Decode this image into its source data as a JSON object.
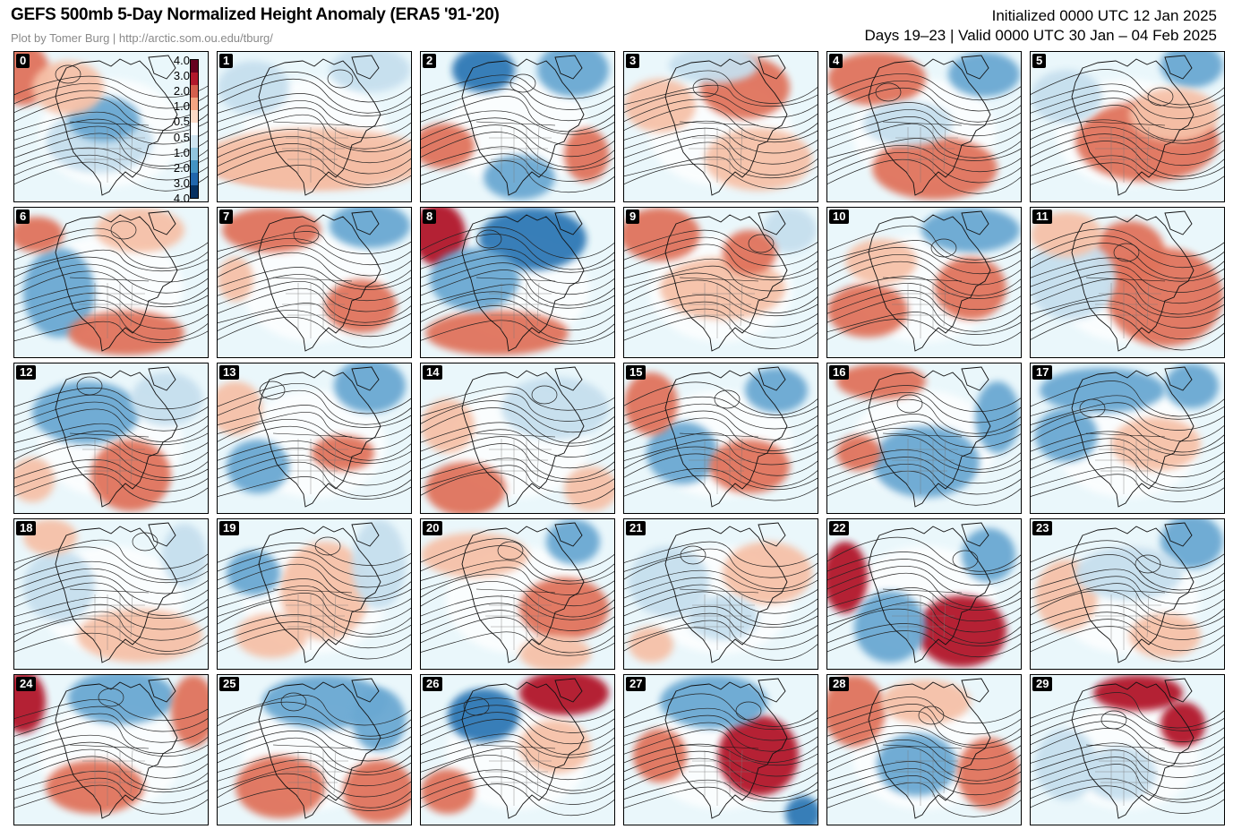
{
  "header": {
    "title": "GEFS 500mb 5-Day Normalized Height Anomaly (ERA5 '91-'20)",
    "credit": "Plot by Tomer Burg | http://arctic.som.ou.edu/tburg/",
    "initialized": "Initialized 0000 UTC 12 Jan 2025",
    "valid": "Days 19–23 | Valid 0000 UTC 30 Jan – 04 Feb 2025"
  },
  "colorbar": {
    "labels": [
      "4.0",
      "3.0",
      "2.0",
      "1.0",
      "0.5",
      "0.5",
      "1.0",
      "2.0",
      "3.0",
      "4.0"
    ],
    "colors": [
      "#67001f",
      "#b2182b",
      "#d6604d",
      "#f4a582",
      "#fddbc7",
      "#ffffff",
      "#d1e5f0",
      "#92c5de",
      "#4393c3",
      "#2166ac",
      "#053061"
    ]
  },
  "palette": {
    "strong_pos": "#b2182b",
    "pos": "#e0735c",
    "weak_pos": "#f6c1a8",
    "neutral": "#ffffff",
    "weak_neg": "#c6dfee",
    "neg": "#6aa8d2",
    "strong_neg": "#2f78b5",
    "background": "#eaf7fb"
  },
  "members": [
    {
      "id": "0",
      "blobs": [
        [
          "pos",
          10,
          25,
          30,
          35
        ],
        [
          "weak_neg",
          95,
          100,
          60,
          35
        ],
        [
          "neg",
          100,
          75,
          40,
          25
        ],
        [
          "weak_pos",
          60,
          40,
          40,
          30
        ]
      ]
    },
    {
      "id": "1",
      "blobs": [
        [
          "pos",
          100,
          125,
          110,
          25
        ],
        [
          "weak_pos",
          110,
          120,
          130,
          35
        ],
        [
          "weak_neg",
          40,
          40,
          40,
          30
        ],
        [
          "weak_neg",
          170,
          20,
          45,
          25
        ]
      ]
    },
    {
      "id": "2",
      "blobs": [
        [
          "strong_neg",
          70,
          20,
          35,
          25
        ],
        [
          "neg",
          170,
          20,
          40,
          30
        ],
        [
          "neg",
          110,
          140,
          40,
          25
        ],
        [
          "pos",
          25,
          105,
          35,
          25
        ],
        [
          "pos",
          185,
          115,
          25,
          30
        ]
      ]
    },
    {
      "id": "3",
      "blobs": [
        [
          "pos",
          135,
          40,
          50,
          35
        ],
        [
          "weak_pos",
          150,
          120,
          60,
          35
        ],
        [
          "weak_neg",
          100,
          15,
          50,
          20
        ],
        [
          "weak_pos",
          40,
          60,
          40,
          30
        ]
      ]
    },
    {
      "id": "4",
      "blobs": [
        [
          "pos",
          55,
          30,
          55,
          30
        ],
        [
          "pos",
          120,
          130,
          70,
          35
        ],
        [
          "neg",
          175,
          25,
          40,
          25
        ],
        [
          "weak_neg",
          90,
          80,
          50,
          25
        ]
      ]
    },
    {
      "id": "5",
      "blobs": [
        [
          "neg",
          180,
          15,
          35,
          25
        ],
        [
          "pos",
          130,
          100,
          80,
          45
        ],
        [
          "weak_neg",
          40,
          50,
          40,
          30
        ],
        [
          "weak_pos",
          160,
          70,
          50,
          30
        ]
      ]
    },
    {
      "id": "6",
      "blobs": [
        [
          "neg",
          50,
          95,
          40,
          50
        ],
        [
          "pos",
          125,
          140,
          65,
          25
        ],
        [
          "pos",
          25,
          30,
          30,
          20
        ],
        [
          "weak_pos",
          140,
          25,
          50,
          25
        ]
      ]
    },
    {
      "id": "7",
      "blobs": [
        [
          "neg",
          170,
          20,
          45,
          25
        ],
        [
          "pos",
          60,
          25,
          55,
          25
        ],
        [
          "pos",
          160,
          110,
          40,
          30
        ],
        [
          "weak_pos",
          20,
          80,
          20,
          25
        ]
      ]
    },
    {
      "id": "8",
      "blobs": [
        [
          "strong_pos",
          20,
          30,
          30,
          35
        ],
        [
          "strong_neg",
          125,
          35,
          60,
          35
        ],
        [
          "pos",
          85,
          140,
          80,
          25
        ],
        [
          "neg",
          60,
          80,
          50,
          35
        ]
      ]
    },
    {
      "id": "9",
      "blobs": [
        [
          "pos",
          40,
          30,
          45,
          30
        ],
        [
          "weak_neg",
          185,
          25,
          30,
          25
        ],
        [
          "weak_pos",
          110,
          90,
          70,
          35
        ],
        [
          "pos",
          140,
          50,
          30,
          25
        ]
      ]
    },
    {
      "id": "10",
      "blobs": [
        [
          "neg",
          160,
          25,
          55,
          25
        ],
        [
          "pos",
          45,
          115,
          45,
          30
        ],
        [
          "pos",
          160,
          90,
          40,
          35
        ],
        [
          "weak_pos",
          60,
          60,
          40,
          25
        ]
      ]
    },
    {
      "id": "11",
      "blobs": [
        [
          "pos",
          150,
          100,
          65,
          55
        ],
        [
          "pos",
          110,
          50,
          40,
          35
        ],
        [
          "weak_neg",
          45,
          80,
          50,
          45
        ],
        [
          "weak_pos",
          40,
          30,
          40,
          25
        ]
      ]
    },
    {
      "id": "12",
      "blobs": [
        [
          "neg",
          80,
          55,
          60,
          35
        ],
        [
          "pos",
          130,
          125,
          45,
          40
        ],
        [
          "weak_neg",
          170,
          40,
          40,
          30
        ],
        [
          "weak_pos",
          20,
          130,
          25,
          25
        ]
      ]
    },
    {
      "id": "13",
      "blobs": [
        [
          "neg",
          170,
          25,
          40,
          30
        ],
        [
          "neg",
          45,
          115,
          35,
          30
        ],
        [
          "pos",
          140,
          100,
          35,
          20
        ],
        [
          "weak_pos",
          20,
          50,
          30,
          30
        ]
      ]
    },
    {
      "id": "14",
      "blobs": [
        [
          "pos",
          50,
          140,
          45,
          30
        ],
        [
          "weak_pos",
          30,
          70,
          30,
          30
        ],
        [
          "weak_neg",
          150,
          50,
          60,
          35
        ],
        [
          "weak_pos",
          190,
          140,
          30,
          25
        ]
      ]
    },
    {
      "id": "15",
      "blobs": [
        [
          "neg",
          65,
          100,
          40,
          35
        ],
        [
          "pos",
          140,
          115,
          45,
          30
        ],
        [
          "pos",
          30,
          45,
          30,
          35
        ],
        [
          "neg",
          170,
          30,
          35,
          25
        ]
      ]
    },
    {
      "id": "16",
      "blobs": [
        [
          "neg",
          110,
          110,
          60,
          40
        ],
        [
          "pos",
          60,
          20,
          50,
          20
        ],
        [
          "pos",
          35,
          100,
          25,
          20
        ],
        [
          "neg",
          190,
          60,
          25,
          40
        ]
      ]
    },
    {
      "id": "17",
      "blobs": [
        [
          "neg",
          80,
          30,
          70,
          25
        ],
        [
          "neg",
          40,
          80,
          35,
          30
        ],
        [
          "neg",
          180,
          25,
          30,
          25
        ],
        [
          "weak_pos",
          140,
          90,
          50,
          30
        ]
      ]
    },
    {
      "id": "18",
      "blobs": [
        [
          "weak_neg",
          50,
          75,
          40,
          40
        ],
        [
          "weak_pos",
          140,
          130,
          70,
          30
        ],
        [
          "weak_neg",
          190,
          40,
          25,
          35
        ],
        [
          "weak_pos",
          40,
          20,
          30,
          20
        ]
      ]
    },
    {
      "id": "19",
      "blobs": [
        [
          "weak_pos",
          120,
          80,
          50,
          55
        ],
        [
          "neg",
          40,
          60,
          30,
          25
        ],
        [
          "weak_neg",
          180,
          50,
          30,
          50
        ],
        [
          "weak_pos",
          60,
          130,
          40,
          25
        ]
      ]
    },
    {
      "id": "20",
      "blobs": [
        [
          "pos",
          160,
          100,
          50,
          35
        ],
        [
          "neg",
          170,
          25,
          30,
          25
        ],
        [
          "weak_pos",
          60,
          40,
          60,
          25
        ],
        [
          "weak_pos",
          150,
          150,
          40,
          20
        ]
      ]
    },
    {
      "id": "21",
      "blobs": [
        [
          "weak_neg",
          50,
          70,
          45,
          40
        ],
        [
          "weak_pos",
          160,
          60,
          50,
          35
        ],
        [
          "weak_neg",
          110,
          110,
          40,
          25
        ],
        [
          "weak_pos",
          30,
          140,
          25,
          20
        ]
      ]
    },
    {
      "id": "22",
      "blobs": [
        [
          "strong_pos",
          20,
          65,
          25,
          40
        ],
        [
          "strong_pos",
          150,
          125,
          50,
          40
        ],
        [
          "neg",
          70,
          120,
          40,
          40
        ],
        [
          "neg",
          180,
          40,
          30,
          30
        ]
      ]
    },
    {
      "id": "23",
      "blobs": [
        [
          "neg",
          180,
          25,
          35,
          30
        ],
        [
          "weak_pos",
          40,
          85,
          35,
          40
        ],
        [
          "weak_neg",
          110,
          60,
          60,
          30
        ],
        [
          "weak_pos",
          150,
          130,
          40,
          25
        ]
      ]
    },
    {
      "id": "24",
      "blobs": [
        [
          "strong_pos",
          10,
          30,
          25,
          35
        ],
        [
          "neg",
          120,
          25,
          60,
          30
        ],
        [
          "pos",
          90,
          125,
          55,
          30
        ],
        [
          "pos",
          200,
          40,
          25,
          40
        ]
      ]
    },
    {
      "id": "25",
      "blobs": [
        [
          "neg",
          120,
          30,
          70,
          30
        ],
        [
          "neg",
          180,
          50,
          30,
          35
        ],
        [
          "pos",
          70,
          125,
          50,
          35
        ],
        [
          "pos",
          180,
          130,
          40,
          35
        ]
      ]
    },
    {
      "id": "26",
      "blobs": [
        [
          "strong_neg",
          70,
          45,
          40,
          30
        ],
        [
          "strong_pos",
          160,
          20,
          50,
          25
        ],
        [
          "pos",
          30,
          130,
          30,
          25
        ],
        [
          "weak_pos",
          150,
          80,
          40,
          30
        ]
      ]
    },
    {
      "id": "27",
      "blobs": [
        [
          "strong_pos",
          150,
          90,
          45,
          45
        ],
        [
          "neg",
          100,
          30,
          60,
          30
        ],
        [
          "pos",
          40,
          90,
          30,
          30
        ],
        [
          "strong_neg",
          200,
          155,
          20,
          20
        ]
      ]
    },
    {
      "id": "28",
      "blobs": [
        [
          "pos",
          30,
          40,
          35,
          40
        ],
        [
          "neg",
          100,
          100,
          45,
          35
        ],
        [
          "pos",
          180,
          110,
          35,
          40
        ],
        [
          "weak_pos",
          110,
          30,
          50,
          25
        ]
      ]
    },
    {
      "id": "29",
      "blobs": [
        [
          "strong_pos",
          120,
          20,
          50,
          20
        ],
        [
          "strong_pos",
          170,
          55,
          25,
          25
        ],
        [
          "weak_neg",
          40,
          100,
          35,
          40
        ],
        [
          "weak_neg",
          100,
          110,
          40,
          30
        ]
      ]
    }
  ]
}
